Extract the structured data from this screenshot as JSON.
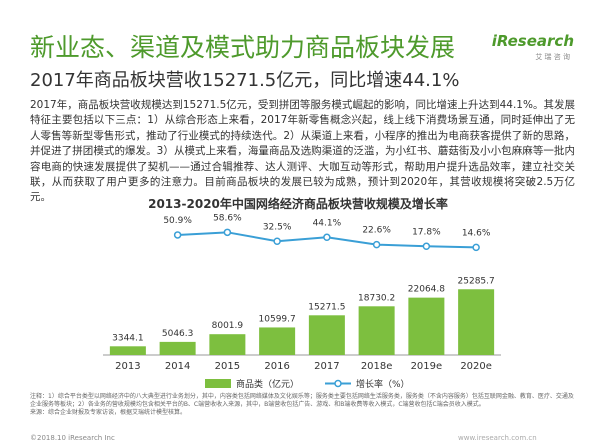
{
  "header": {
    "title": "新业态、渠道及模式助力商品板块发展",
    "subtitle": "2017年商品板块营收15271.5亿元，同比增速44.1%",
    "logo": "iResearch",
    "logo_sub": "艾 瑞 咨 询"
  },
  "paragraph": "2017年，商品板块营收规模达到15271.5亿元，受到拼团等服务模式崛起的影响，同比增速上升达到44.1%。其发展特征主要包括以下三点：1）从综合形态上来看，2017年新零售概念兴起，线上线下消费场景互通，同时延伸出了无人零售等新型零售形式，推动了行业模式的持续迭代。2）从渠道上来看，小程序的推出为电商获客提供了新的思路，并促进了拼团模式的爆发。3）从模式上来看，海量商品及选购渠道的泛滥，为小红书、蘑菇街及小小包麻麻等一批内容电商的快速发展提供了契机——通过合辑推荐、达人测评、大咖互动等形式，帮助用户提升选品效率，建立社交关联，从而获取了用户更多的注意力。目前商品板块的发展已较为成熟，预计到2020年，其营收规模将突破2.5万亿元。",
  "chart_data": {
    "type": "bar-line",
    "title": "2013-2020年中国网络经济商品板块营收规模及增长率",
    "categories": [
      "2013",
      "2014",
      "2015",
      "2016",
      "2017",
      "2018e",
      "2019e",
      "2020e"
    ],
    "series": [
      {
        "name": "商品类（亿元）",
        "type": "bar",
        "color": "#7dbf3f",
        "values": [
          3344.1,
          5046.3,
          8001.9,
          10599.7,
          15271.5,
          18730.2,
          22064.8,
          25285.7
        ]
      },
      {
        "name": "增长率（%）",
        "type": "line",
        "axis": "y2",
        "color": "#3a9fd6",
        "values": [
          null,
          50.9,
          58.6,
          32.5,
          44.1,
          22.6,
          17.8,
          14.6
        ],
        "value_labels": [
          null,
          "50.9%",
          "58.6%",
          "32.5%",
          "44.1%",
          "22.6%",
          "17.8%",
          "14.6%"
        ]
      }
    ],
    "ylim": [
      0,
      50000
    ],
    "y2lim": [
      -300,
      80
    ],
    "legend": "bottom"
  },
  "notes": [
    "注释：1）综合平台类型以网络经济中的八大典型进行业务划分，其中，内容类包括网络媒体及文化娱乐等；服务类主要包括网络生活服务类，服务类（不含内容服务）包括互联网金融、教育、医疗、交通及企业服务等板块；2）各业务的营收规模均包含相关平台的B、C端营收收入来源，其中，B端营收包括广告、游戏、和B端收费等收入模式，C端营收包括C端会员收入模式。",
    "来源：综合企业财报及专家访谈，根据艾瑞统计模型核算。"
  ],
  "footer": {
    "left": "©2018.10 iResearch Inc",
    "right": "www.iresearch.com.cn"
  }
}
